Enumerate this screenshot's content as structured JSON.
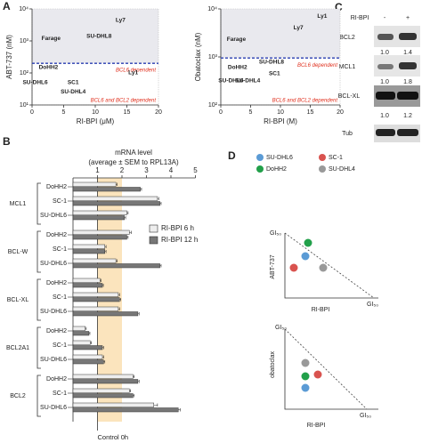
{
  "panel_labels": [
    "A",
    "B",
    "C",
    "D"
  ],
  "chart_data": [
    {
      "type": "scatter",
      "y_label": "ABT-737 (nM)",
      "x_label": "RI-BPI (μM)",
      "yscale": "log",
      "xlim": [
        0,
        20
      ],
      "xticks": [
        0,
        5,
        10,
        15,
        20
      ],
      "ylim": [
        10,
        10000
      ],
      "yticks": [
        {
          "value": 10,
          "label": "10¹"
        },
        {
          "value": 100,
          "label": "10²"
        },
        {
          "value": 1000,
          "label": "10³"
        },
        {
          "value": 10000,
          "label": "10⁴"
        }
      ],
      "threshold": 200,
      "threshold_color": "#2a3fb0",
      "shade_color": "#e9e9ee",
      "annotations": [
        "BCL6 dependent",
        "BCL6 and BCL2 dependent"
      ],
      "annotation_color": "#e0301e",
      "labels": [
        "Ly7",
        "Farage",
        "SU-DHL8",
        "DoHH2",
        "Ly1",
        "SU-DHL6",
        "SC1",
        "SU-DHL4"
      ],
      "x": [
        14,
        3,
        10.6,
        2.6,
        16,
        0.5,
        6.5,
        6.5
      ],
      "y": [
        4400,
        1200,
        1400,
        150,
        100,
        50,
        50,
        26
      ]
    },
    {
      "type": "scatter",
      "y_label": "Obatoclax (nM)",
      "x_label": "RI-BPI (M)",
      "yscale": "log",
      "xlim": [
        0,
        20
      ],
      "xticks": [
        0,
        5,
        10,
        15,
        20
      ],
      "ylim": [
        100,
        10000
      ],
      "yticks": [
        {
          "value": 100,
          "label": "10²"
        },
        {
          "value": 1000,
          "label": "10³"
        },
        {
          "value": 10000,
          "label": "10⁴"
        }
      ],
      "threshold": 950,
      "threshold_color": "#2a3fb0",
      "shade_color": "#e9e9ee",
      "annotations": [
        "BCL6 dependent",
        "BCL6 and BCL2 dependent"
      ],
      "annotation_color": "#e0301e",
      "labels": [
        "Ly1",
        "Ly7",
        "Farage",
        "SU-DHL8",
        "DoHH2",
        "SU-DHL6",
        "SC1",
        "SU-DHL4"
      ],
      "x": [
        17,
        13,
        2.6,
        8.5,
        2.8,
        1.7,
        9,
        4.5
      ],
      "y": [
        7000,
        4000,
        2300,
        780,
        600,
        320,
        450,
        320
      ]
    },
    {
      "type": "barh",
      "title": "mRNA level",
      "subtitle": "(average ± SEM to RPL13A)",
      "xlim": [
        0,
        5
      ],
      "xticks": [
        1,
        2,
        3,
        4,
        5
      ],
      "group_labels": [
        "MCL1",
        "BCL-W",
        "BCL-XL",
        "BCL2A1",
        "BCL2"
      ],
      "categories": [
        "DoHH2",
        "SC-1",
        "SU-DHL6",
        "DoHH2",
        "SC-1",
        "SU-DHL6",
        "DoHH2",
        "SC-1",
        "SU-DHL6",
        "DoHH2",
        "SC-1",
        "SU-DHL6",
        "DoHH2",
        "SC-1",
        "SU-DHL6"
      ],
      "series": [
        {
          "name": "RI-BPI 6 h",
          "color": "#eeeeee",
          "values": [
            1.75,
            3.45,
            2.2,
            2.3,
            1.3,
            1.75,
            1.1,
            1.85,
            1.85,
            0.5,
            0.7,
            1.2,
            2.45,
            2.3,
            3.3
          ],
          "errors": [
            0.05,
            0.05,
            0.05,
            0.08,
            0.05,
            0.05,
            0.04,
            0.05,
            0.05,
            0.04,
            0.05,
            0.05,
            0.05,
            0.05,
            0.15
          ]
        },
        {
          "name": "RI-BPI 12 h",
          "color": "#777777",
          "values": [
            2.75,
            3.55,
            2.1,
            2.2,
            1.3,
            3.55,
            1.2,
            1.9,
            2.65,
            0.65,
            1.2,
            1.25,
            2.65,
            2.45,
            4.3
          ],
          "errors": [
            0.05,
            0.05,
            0.05,
            0.05,
            0.05,
            0.05,
            0.04,
            0.05,
            0.05,
            0.04,
            0.05,
            0.05,
            0.05,
            0.05,
            0.08
          ]
        }
      ],
      "shaded_range": [
        1,
        2
      ],
      "shade_color": "#fbe4bd",
      "reference_line": 1,
      "reference_label": "Control 0h"
    }
  ],
  "blot": {
    "treatment": "RI-BPI",
    "lanes": [
      "-",
      "+"
    ],
    "rows": [
      {
        "label": "BCL2",
        "values": [
          "1.0",
          "1.4"
        ]
      },
      {
        "label": "MCL1",
        "values": [
          "1.0",
          "1.8"
        ]
      },
      {
        "label": "BCL-XL",
        "values": [
          "1.0",
          "1.2"
        ]
      },
      {
        "label": "Tub"
      }
    ]
  },
  "diagram": {
    "legend": [
      "SU-DHL6",
      "SC-1",
      "DoHH2",
      "SU-DHL4"
    ],
    "plots": [
      {
        "y_label": "ABT-737",
        "x_label": "RI-BPI",
        "limit_label": "GI₅₀"
      },
      {
        "y_label": "obatoclax",
        "x_label": "RI-BPI",
        "limit_label": "GI₅₀"
      }
    ]
  }
}
